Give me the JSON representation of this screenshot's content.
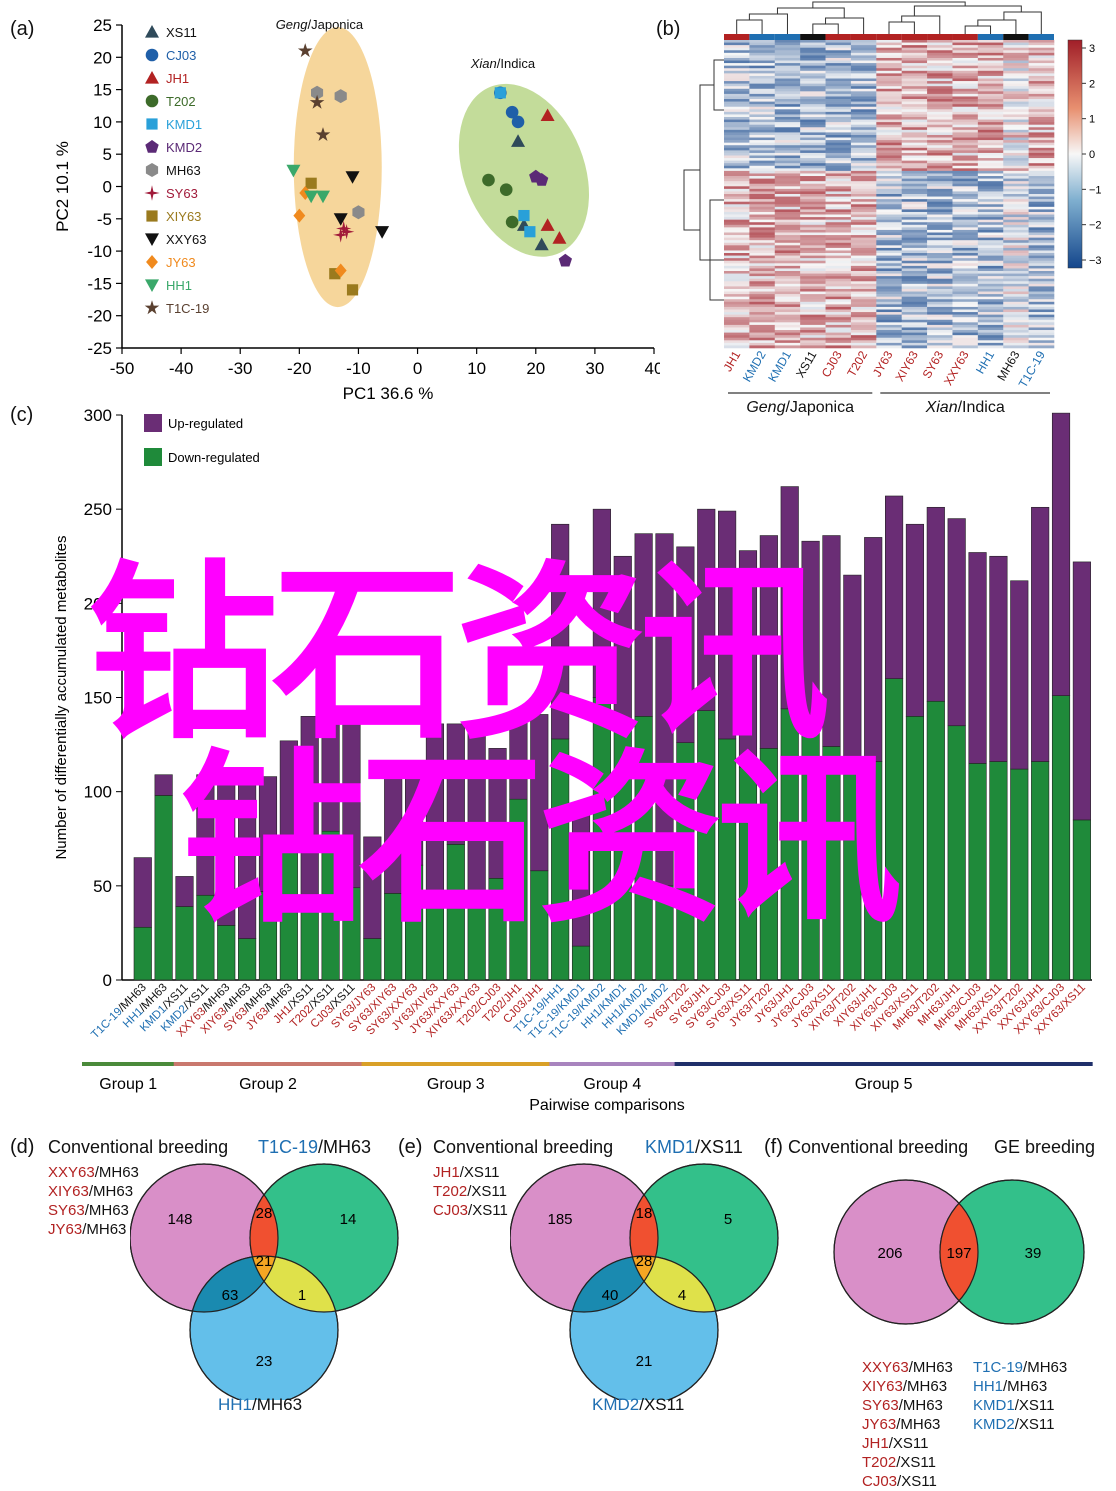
{
  "colors": {
    "red": "#b22222",
    "blue": "#1f6fb2",
    "purple": "#6a2d75",
    "green": "#1f8a3a",
    "magenta": "#ff00ff"
  },
  "panel_labels": {
    "a": "(a)",
    "b": "(b)",
    "c": "(c)",
    "d": "(d)",
    "e": "(e)",
    "f": "(f)"
  },
  "chart_data": [
    {
      "type": "scatter",
      "panel": "a",
      "xlabel": "PC1 36.6 %",
      "ylabel": "PC2 10.1 %",
      "xlim": [
        -50,
        40
      ],
      "ylim": [
        -25,
        25
      ],
      "xticks": [
        -50,
        -40,
        -30,
        -20,
        -10,
        0,
        10,
        20,
        30,
        40
      ],
      "yticks": [
        -25,
        -20,
        -15,
        -10,
        -5,
        0,
        5,
        10,
        15,
        20,
        25
      ],
      "ellipse_labels": [
        {
          "pre": "Geng",
          "post": "/Japonica"
        },
        {
          "pre": "Xian",
          "post": "/Indica"
        }
      ],
      "series": [
        {
          "name": "XS11",
          "color": "#2f4a5a",
          "marker": "triangle",
          "points": [
            [
              17,
              7
            ],
            [
              18,
              -6
            ],
            [
              21,
              -9
            ]
          ]
        },
        {
          "name": "CJ03",
          "color": "#1f5fa8",
          "marker": "circle",
          "points": [
            [
              14,
              14.5
            ],
            [
              16,
              11.5
            ],
            [
              17,
              10
            ]
          ]
        },
        {
          "name": "JH1",
          "color": "#b22222",
          "marker": "triangle",
          "points": [
            [
              22,
              11
            ],
            [
              22,
              -6
            ],
            [
              24,
              -8
            ]
          ]
        },
        {
          "name": "T202",
          "color": "#3d6b2a",
          "marker": "circle",
          "points": [
            [
              12,
              1
            ],
            [
              15,
              -0.5
            ],
            [
              16,
              -5.5
            ]
          ]
        },
        {
          "name": "KMD1",
          "color": "#29a0d9",
          "marker": "square",
          "points": [
            [
              14,
              14.5
            ],
            [
              18,
              -4.5
            ],
            [
              19,
              -7
            ]
          ]
        },
        {
          "name": "KMD2",
          "color": "#5b2a76",
          "marker": "pentagon",
          "points": [
            [
              20,
              1.5
            ],
            [
              21,
              1
            ],
            [
              25,
              -11.5
            ]
          ]
        },
        {
          "name": "MH63",
          "color": "#8a8a8a",
          "marker": "hexagon",
          "points": [
            [
              -17,
              14.5
            ],
            [
              -13,
              14
            ],
            [
              -10,
              -4
            ]
          ]
        },
        {
          "name": "SY63",
          "color": "#a11a3a",
          "marker": "star4",
          "points": [
            [
              -12,
              -7
            ],
            [
              -13,
              -7.5
            ],
            [
              -12.5,
              -6.5
            ]
          ]
        },
        {
          "name": "XIY63",
          "color": "#9a7a1e",
          "marker": "square",
          "points": [
            [
              -18,
              0.5
            ],
            [
              -14,
              -13.5
            ],
            [
              -11,
              -16
            ]
          ]
        },
        {
          "name": "XXY63",
          "color": "#111111",
          "marker": "triangle-down",
          "points": [
            [
              -11,
              1.5
            ],
            [
              -13,
              -5
            ],
            [
              -6,
              -7
            ]
          ]
        },
        {
          "name": "JY63",
          "color": "#f08a1e",
          "marker": "diamond",
          "points": [
            [
              -19,
              -1
            ],
            [
              -20,
              -4.5
            ],
            [
              -13,
              -13
            ]
          ]
        },
        {
          "name": "HH1",
          "color": "#3aa86a",
          "marker": "triangle-down",
          "points": [
            [
              -21,
              2.5
            ],
            [
              -18,
              -1.5
            ],
            [
              -16,
              -1.5
            ]
          ]
        },
        {
          "name": "T1C-19",
          "color": "#5a4030",
          "marker": "star",
          "points": [
            [
              -19,
              21
            ],
            [
              -17,
              13
            ],
            [
              -16,
              8
            ]
          ]
        }
      ]
    },
    {
      "type": "heatmap",
      "panel": "b",
      "colorbar_ticks": [
        "3",
        "2",
        "1",
        "0",
        "−1",
        "−2",
        "−3"
      ],
      "columns": [
        "JH1",
        "KMD2",
        "KMD1",
        "XS11",
        "CJ03",
        "T202",
        "JY63",
        "XIY63",
        "SY63",
        "XXY63",
        "HH1",
        "MH63",
        "T1C-19"
      ],
      "column_colors": [
        "#b22222",
        "#1f6fb2",
        "#1f6fb2",
        "#111111",
        "#b22222",
        "#b22222",
        "#b22222",
        "#b22222",
        "#b22222",
        "#b22222",
        "#1f6fb2",
        "#111111",
        "#1f6fb2"
      ],
      "group_labels": [
        {
          "pre": "Geng",
          "post": "/Japonica"
        },
        {
          "pre": "Xian",
          "post": "/Indica"
        }
      ]
    },
    {
      "type": "bar",
      "panel": "c",
      "xlabel": "Pairwise comparisons",
      "ylabel": "Number of differentially accumulated metabolites",
      "ylim": [
        0,
        300
      ],
      "yticks": [
        0,
        50,
        100,
        150,
        200,
        250,
        300
      ],
      "legend": [
        "Up-regulated",
        "Down-regulated"
      ],
      "categories": [
        {
          "a": "T1C-19",
          "b": "MH63",
          "ca": "#1f6fb2",
          "cb": "#111111"
        },
        {
          "a": "HH1",
          "b": "MH63",
          "ca": "#1f6fb2",
          "cb": "#111111"
        },
        {
          "a": "KMD1",
          "b": "XS11",
          "ca": "#1f6fb2",
          "cb": "#111111"
        },
        {
          "a": "KMD2",
          "b": "XS11",
          "ca": "#1f6fb2",
          "cb": "#111111"
        },
        {
          "a": "XXY63",
          "b": "MH63",
          "ca": "#b22222",
          "cb": "#111111"
        },
        {
          "a": "XIY63",
          "b": "MH63",
          "ca": "#b22222",
          "cb": "#111111"
        },
        {
          "a": "SY63",
          "b": "MH63",
          "ca": "#b22222",
          "cb": "#111111"
        },
        {
          "a": "JY63",
          "b": "MH63",
          "ca": "#b22222",
          "cb": "#111111"
        },
        {
          "a": "JH1",
          "b": "XS11",
          "ca": "#b22222",
          "cb": "#111111"
        },
        {
          "a": "T202",
          "b": "XS11",
          "ca": "#b22222",
          "cb": "#111111"
        },
        {
          "a": "CJ03",
          "b": "XS11",
          "ca": "#b22222",
          "cb": "#111111"
        },
        {
          "a": "SY63",
          "b": "JY63",
          "ca": "#b22222",
          "cb": "#b22222"
        },
        {
          "a": "SY63",
          "b": "XIY63",
          "ca": "#b22222",
          "cb": "#b22222"
        },
        {
          "a": "SY63",
          "b": "XXY63",
          "ca": "#b22222",
          "cb": "#b22222"
        },
        {
          "a": "JY63",
          "b": "XIY63",
          "ca": "#b22222",
          "cb": "#b22222"
        },
        {
          "a": "JY63",
          "b": "XXY63",
          "ca": "#b22222",
          "cb": "#b22222"
        },
        {
          "a": "XIY63",
          "b": "XXY63",
          "ca": "#b22222",
          "cb": "#b22222"
        },
        {
          "a": "T202",
          "b": "CJ03",
          "ca": "#b22222",
          "cb": "#b22222"
        },
        {
          "a": "T202",
          "b": "JH1",
          "ca": "#b22222",
          "cb": "#b22222"
        },
        {
          "a": "CJ03",
          "b": "JH1",
          "ca": "#b22222",
          "cb": "#b22222"
        },
        {
          "a": "T1C-19",
          "b": "HH1",
          "ca": "#1f6fb2",
          "cb": "#1f6fb2"
        },
        {
          "a": "T1C-19",
          "b": "KMD1",
          "ca": "#1f6fb2",
          "cb": "#1f6fb2"
        },
        {
          "a": "T1C-19",
          "b": "KMD2",
          "ca": "#1f6fb2",
          "cb": "#1f6fb2"
        },
        {
          "a": "HH1",
          "b": "KMD1",
          "ca": "#1f6fb2",
          "cb": "#1f6fb2"
        },
        {
          "a": "HH1",
          "b": "KMD2",
          "ca": "#1f6fb2",
          "cb": "#1f6fb2"
        },
        {
          "a": "KMD1",
          "b": "KMD2",
          "ca": "#1f6fb2",
          "cb": "#1f6fb2"
        },
        {
          "a": "SY63",
          "b": "T202",
          "ca": "#b22222",
          "cb": "#b22222"
        },
        {
          "a": "SY63",
          "b": "JH1",
          "ca": "#b22222",
          "cb": "#b22222"
        },
        {
          "a": "SY63",
          "b": "CJ03",
          "ca": "#b22222",
          "cb": "#b22222"
        },
        {
          "a": "SY63",
          "b": "XS11",
          "ca": "#b22222",
          "cb": "#b22222"
        },
        {
          "a": "JY63",
          "b": "T202",
          "ca": "#b22222",
          "cb": "#b22222"
        },
        {
          "a": "JY63",
          "b": "JH1",
          "ca": "#b22222",
          "cb": "#b22222"
        },
        {
          "a": "JY63",
          "b": "CJ03",
          "ca": "#b22222",
          "cb": "#b22222"
        },
        {
          "a": "JY63",
          "b": "XS11",
          "ca": "#b22222",
          "cb": "#b22222"
        },
        {
          "a": "XIY63",
          "b": "T202",
          "ca": "#b22222",
          "cb": "#b22222"
        },
        {
          "a": "XIY63",
          "b": "JH1",
          "ca": "#b22222",
          "cb": "#b22222"
        },
        {
          "a": "XIY63",
          "b": "CJ03",
          "ca": "#b22222",
          "cb": "#b22222"
        },
        {
          "a": "XIY63",
          "b": "XS11",
          "ca": "#b22222",
          "cb": "#b22222"
        },
        {
          "a": "MH63",
          "b": "T202",
          "ca": "#b22222",
          "cb": "#b22222"
        },
        {
          "a": "MH63",
          "b": "JH1",
          "ca": "#b22222",
          "cb": "#b22222"
        },
        {
          "a": "MH63",
          "b": "CJ03",
          "ca": "#b22222",
          "cb": "#b22222"
        },
        {
          "a": "MH63",
          "b": "XS11",
          "ca": "#b22222",
          "cb": "#b22222"
        },
        {
          "a": "XXY63",
          "b": "T202",
          "ca": "#b22222",
          "cb": "#b22222"
        },
        {
          "a": "XXY63",
          "b": "JH1",
          "ca": "#b22222",
          "cb": "#b22222"
        },
        {
          "a": "XXY63",
          "b": "CJ03",
          "ca": "#b22222",
          "cb": "#b22222"
        },
        {
          "a": "XXY63",
          "b": "XS11",
          "ca": "#b22222",
          "cb": "#b22222"
        }
      ],
      "series": [
        {
          "name": "Up-regulated",
          "color": "#6a2d75",
          "values": [
            37,
            11,
            16,
            64,
            80,
            87,
            61,
            53,
            97,
            60,
            96,
            54,
            66,
            51,
            91,
            64,
            91,
            69,
            45,
            83,
            114,
            71,
            100,
            87,
            97,
            187,
            104,
            107,
            121,
            115,
            113,
            118,
            101,
            112,
            103,
            119,
            97,
            102,
            103,
            110,
            112,
            109,
            100,
            135,
            150,
            137
          ]
        },
        {
          "name": "Down-regulated",
          "color": "#1f8a3a",
          "values": [
            28,
            98,
            39,
            45,
            29,
            22,
            47,
            74,
            43,
            79,
            49,
            22,
            46,
            61,
            45,
            72,
            45,
            54,
            96,
            58,
            128,
            18,
            150,
            138,
            140,
            50,
            126,
            143,
            128,
            113,
            123,
            144,
            132,
            124,
            112,
            116,
            160,
            140,
            148,
            135,
            115,
            116,
            112,
            116,
            151,
            85
          ]
        }
      ],
      "groups": [
        {
          "label": "Group 1",
          "color": "#4a8a3a"
        },
        {
          "label": "Group 2",
          "color": "#c9786e"
        },
        {
          "label": "Group 3",
          "color": "#d9a027"
        },
        {
          "label": "Group 4",
          "color": "#a884be"
        },
        {
          "label": "Group 5",
          "color": "#1f2f6a"
        }
      ]
    }
  ],
  "venn_d": {
    "title": "Conventional breeding",
    "title_right": {
      "a": "T1C-19",
      "b": "/MH63"
    },
    "list": [
      [
        "XXY63",
        "/MH63"
      ],
      [
        "XIY63",
        "/MH63"
      ],
      [
        "SY63",
        "/MH63"
      ],
      [
        "JY63",
        "/MH63"
      ]
    ],
    "bottom": {
      "a": "HH1",
      "b": "/MH63"
    },
    "values": {
      "left": "148",
      "top_mid": "28",
      "right": "14",
      "center": "21",
      "left_bottom": "63",
      "right_bottom": "1",
      "bottom": "23"
    }
  },
  "venn_e": {
    "title": "Conventional breeding",
    "title_right": {
      "a": "KMD1",
      "b": "/XS11"
    },
    "list": [
      [
        "JH1",
        "/XS11"
      ],
      [
        "T202",
        "/XS11"
      ],
      [
        "CJ03",
        "/XS11"
      ]
    ],
    "bottom": {
      "a": "KMD2",
      "b": "/XS11"
    },
    "values": {
      "left": "185",
      "top_mid": "18",
      "right": "5",
      "center": "28",
      "left_bottom": "40",
      "right_bottom": "4",
      "bottom": "21"
    }
  },
  "venn_f": {
    "title_left": "Conventional breeding",
    "title_right": "GE breeding",
    "values": {
      "left": "206",
      "mid": "197",
      "right": "39"
    },
    "list_left": [
      [
        "XXY63",
        "/MH63"
      ],
      [
        "XIY63",
        "/MH63"
      ],
      [
        "SY63",
        "/MH63"
      ],
      [
        "JY63",
        "/MH63"
      ],
      [
        "JH1",
        "/XS11"
      ],
      [
        "T202",
        "/XS11"
      ],
      [
        "CJ03",
        "/XS11"
      ]
    ],
    "list_right": [
      [
        "T1C-19",
        "/MH63"
      ],
      [
        "HH1",
        "/MH63"
      ],
      [
        "KMD1",
        "/XS11"
      ],
      [
        "KMD2",
        "/XS11"
      ]
    ]
  },
  "watermark": [
    "钻石资讯",
    "钻石资讯"
  ]
}
